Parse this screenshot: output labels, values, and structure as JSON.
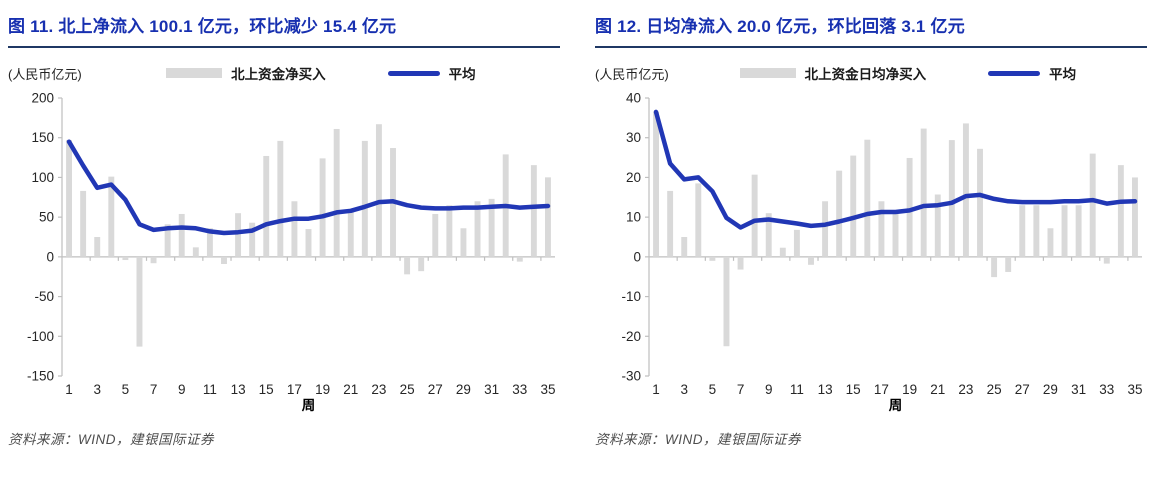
{
  "colors": {
    "background": "#FFFFFF",
    "title_text": "#1730B0",
    "title_underline": "#1F3864",
    "bar": "#D9D9D9",
    "line": "#2137B5",
    "axis": "#BFBFBF",
    "tick_label": "#262626",
    "legend_text": "#1A1A1A",
    "source_text": "#4D4D4D"
  },
  "figures": [
    {
      "title": "图 11. 北上净流入 100.1 亿元，环比减少 15.4 亿元",
      "unit_label": "(人民币亿元)",
      "legend": {
        "bar_label": "北上资金净买入",
        "line_label": "平均"
      },
      "source": "资料来源：WIND，建银国际证券",
      "chart_data": {
        "type": "bar",
        "title": "北上净流入 100.1 亿元，环比减少 15.4 亿元",
        "xlabel": "周",
        "ylabel": "人民币亿元",
        "grid": false,
        "legend_position": "top",
        "x": [
          1,
          2,
          3,
          4,
          5,
          6,
          7,
          8,
          9,
          10,
          11,
          12,
          13,
          14,
          15,
          16,
          17,
          18,
          19,
          20,
          21,
          22,
          23,
          24,
          25,
          26,
          27,
          28,
          29,
          30,
          31,
          32,
          33,
          34,
          35
        ],
        "x_ticks": [
          1,
          3,
          5,
          7,
          9,
          11,
          13,
          15,
          17,
          19,
          21,
          23,
          25,
          27,
          29,
          31,
          33,
          35
        ],
        "ylim": [
          -150,
          200
        ],
        "y_ticks": [
          200,
          150,
          100,
          50,
          0,
          -50,
          -100,
          -150
        ],
        "series": [
          {
            "name": "北上资金净买入",
            "type": "bar",
            "color": "#D9D9D9",
            "values": [
              147,
              83,
              25,
              101,
              -4,
              -113,
              -8,
              41,
              54,
              12,
              36,
              -9,
              55,
              43,
              127,
              146,
              70,
              35,
              124,
              161,
              60,
              146,
              167,
              137,
              -22,
              -18,
              54,
              65,
              36,
              70,
              73,
              129,
              -6,
              115.5,
              100.1
            ]
          },
          {
            "name": "平均",
            "type": "line",
            "color": "#2137B5",
            "values": [
              145,
              115,
              87,
              91,
              72,
              41,
              34,
              36,
              37,
              36,
              32,
              30,
              31,
              33,
              41,
              45,
              48,
              48,
              51,
              56,
              58,
              63,
              69,
              70,
              65,
              62,
              61,
              61,
              62,
              62,
              63,
              64,
              62,
              63,
              64
            ]
          }
        ]
      }
    },
    {
      "title": "图 12. 日均净流入 20.0 亿元，环比回落 3.1 亿元",
      "unit_label": "(人民币亿元)",
      "legend": {
        "bar_label": "北上资金日均净买入",
        "line_label": "平均"
      },
      "source": "资料来源：WIND，建银国际证券",
      "chart_data": {
        "type": "bar",
        "title": "日均净流入 20.0 亿元，环比回落 3.1 亿元",
        "xlabel": "周",
        "ylabel": "人民币亿元",
        "grid": false,
        "legend_position": "top",
        "x": [
          1,
          2,
          3,
          4,
          5,
          6,
          7,
          8,
          9,
          10,
          11,
          12,
          13,
          14,
          15,
          16,
          17,
          18,
          19,
          20,
          21,
          22,
          23,
          24,
          25,
          26,
          27,
          28,
          29,
          30,
          31,
          32,
          33,
          34,
          35
        ],
        "x_ticks": [
          1,
          3,
          5,
          7,
          9,
          11,
          13,
          15,
          17,
          19,
          21,
          23,
          25,
          27,
          29,
          31,
          33,
          35
        ],
        "ylim": [
          -30,
          40
        ],
        "y_ticks": [
          40,
          30,
          20,
          10,
          0,
          -10,
          -20,
          -30
        ],
        "series": [
          {
            "name": "北上资金日均净买入",
            "type": "bar",
            "color": "#D9D9D9",
            "values": [
              36.5,
              16.6,
              5,
              18.5,
              -1,
              -22.5,
              -3.2,
              20.7,
              11,
              2.3,
              6.8,
              -2,
              14,
              21.7,
              25.5,
              29.5,
              14,
              11.2,
              24.9,
              32.3,
              15.7,
              29.4,
              33.6,
              27.2,
              -5.1,
              -3.8,
              13,
              13,
              7.2,
              13,
              13,
              26,
              -1.7,
              23.1,
              20
            ]
          },
          {
            "name": "平均",
            "type": "line",
            "color": "#2137B5",
            "values": [
              36.5,
              23.5,
              19.5,
              20,
              16.5,
              9.8,
              7.4,
              9.1,
              9.4,
              8.9,
              8.4,
              7.8,
              8.1,
              8.9,
              9.8,
              10.8,
              11.3,
              11.3,
              11.7,
              12.8,
              13,
              13.6,
              15.3,
              15.6,
              14.6,
              14,
              13.8,
              13.8,
              13.8,
              14,
              14,
              14.3,
              13.4,
              13.9,
              14
            ]
          }
        ]
      }
    }
  ]
}
